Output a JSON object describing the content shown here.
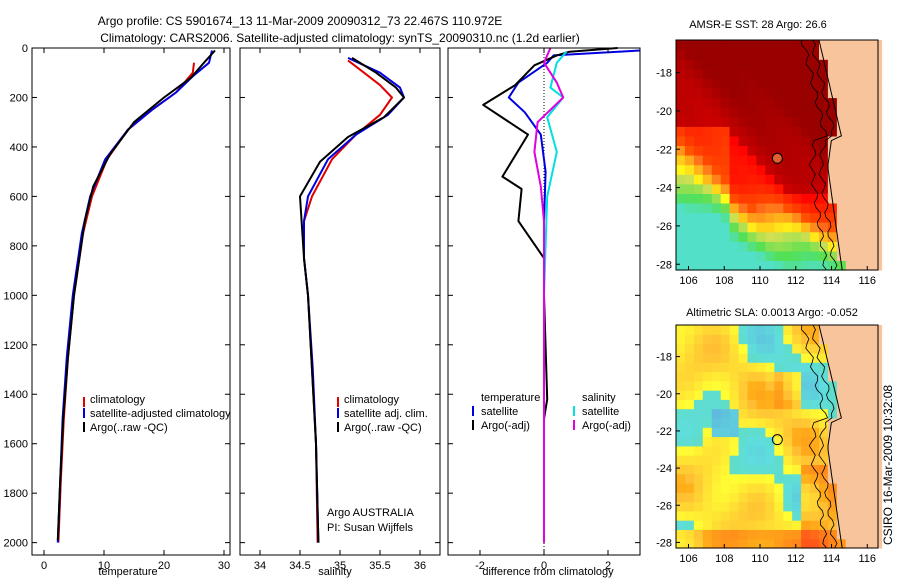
{
  "header": {
    "line1": "Argo profile: CS 5901674_13 11-Mar-2009 20090312_73 22.467S 110.972E",
    "line2": "Climatology: CARS2006. Satellite-adjusted climatology: synTS_20090310.nc (1.2d earlier)"
  },
  "side_stamp": "CSIRO 16-Mar-2009 10:32:08",
  "colors": {
    "clim": "#e00000",
    "sat": "#0000e0",
    "argo": "#000000",
    "cyan": "#00e0e0",
    "magenta": "#e000e0"
  },
  "chart_data": [
    {
      "type": "line",
      "id": "temperature",
      "xlabel": "temperature",
      "ylim": [
        0,
        2050
      ],
      "xlim": [
        -2,
        31
      ],
      "xticks": [
        0,
        10,
        20,
        30
      ],
      "yticks": [
        0,
        200,
        400,
        600,
        800,
        1000,
        1200,
        1400,
        1600,
        1800,
        2000
      ],
      "legend": [
        "climatology",
        "satellite-adjusted climatology",
        "Argo(..raw -QC)"
      ],
      "series": [
        {
          "name": "climatology",
          "color": "clim",
          "points": [
            [
              25,
              60
            ],
            [
              24.8,
              100
            ],
            [
              22,
              180
            ],
            [
              18,
              250
            ],
            [
              14,
              330
            ],
            [
              10.5,
              450
            ],
            [
              8,
              600
            ],
            [
              6.5,
              750
            ],
            [
              5,
              1000
            ],
            [
              4,
              1250
            ],
            [
              3.3,
              1500
            ],
            [
              2.8,
              1750
            ],
            [
              2.4,
              2000
            ]
          ]
        },
        {
          "name": "satellite",
          "color": "sat",
          "points": [
            [
              28,
              10
            ],
            [
              27.5,
              60
            ],
            [
              25,
              110
            ],
            [
              22,
              180
            ],
            [
              18,
              250
            ],
            [
              14,
              330
            ],
            [
              10.2,
              450
            ],
            [
              7.7,
              600
            ],
            [
              6.3,
              750
            ],
            [
              4.8,
              1000
            ],
            [
              3.8,
              1250
            ],
            [
              3.1,
              1500
            ],
            [
              2.7,
              1750
            ],
            [
              2.3,
              2000
            ]
          ]
        },
        {
          "name": "argo",
          "color": "argo",
          "points": [
            [
              28.5,
              10
            ],
            [
              27,
              50
            ],
            [
              24.5,
              120
            ],
            [
              20,
              200
            ],
            [
              15,
              300
            ],
            [
              11,
              430
            ],
            [
              8.2,
              560
            ],
            [
              6.8,
              700
            ],
            [
              5,
              1000
            ],
            [
              4,
              1250
            ],
            [
              3.2,
              1500
            ],
            [
              2.7,
              1750
            ],
            [
              2.3,
              1990
            ]
          ]
        }
      ]
    },
    {
      "type": "line",
      "id": "salinity",
      "xlabel": "salinity",
      "ylim": [
        0,
        2050
      ],
      "xlim": [
        33.75,
        36.25
      ],
      "xticks": [
        34,
        34.5,
        35,
        35.5,
        36
      ],
      "yticks": [
        0,
        200,
        400,
        600,
        800,
        1000,
        1200,
        1400,
        1600,
        1800,
        2000
      ],
      "legend": [
        "climatology",
        "satellite adj. clim.",
        "Argo(..raw -QC)"
      ],
      "note": [
        "Argo AUSTRALIA",
        "PI: Susan Wijffels"
      ],
      "series": [
        {
          "name": "climatology",
          "color": "clim",
          "points": [
            [
              35.1,
              50
            ],
            [
              35.3,
              100
            ],
            [
              35.5,
              150
            ],
            [
              35.65,
              200
            ],
            [
              35.5,
              270
            ],
            [
              35.2,
              350
            ],
            [
              34.9,
              450
            ],
            [
              34.65,
              600
            ],
            [
              34.55,
              700
            ],
            [
              34.55,
              850
            ],
            [
              34.6,
              1000
            ],
            [
              34.65,
              1300
            ],
            [
              34.7,
              1600
            ],
            [
              34.72,
              2000
            ]
          ]
        },
        {
          "name": "satellite",
          "color": "sat",
          "points": [
            [
              35.1,
              40
            ],
            [
              35.5,
              100
            ],
            [
              35.75,
              160
            ],
            [
              35.8,
              200
            ],
            [
              35.6,
              270
            ],
            [
              35.2,
              350
            ],
            [
              34.85,
              450
            ],
            [
              34.6,
              600
            ],
            [
              34.55,
              700
            ],
            [
              34.55,
              850
            ],
            [
              34.6,
              1000
            ],
            [
              34.66,
              1300
            ],
            [
              34.7,
              1600
            ],
            [
              34.73,
              2000
            ]
          ]
        },
        {
          "name": "argo",
          "color": "argo",
          "points": [
            [
              35.15,
              40
            ],
            [
              35.45,
              100
            ],
            [
              35.7,
              160
            ],
            [
              35.8,
              200
            ],
            [
              35.55,
              280
            ],
            [
              35.1,
              360
            ],
            [
              34.75,
              460
            ],
            [
              34.5,
              600
            ],
            [
              34.52,
              700
            ],
            [
              34.55,
              850
            ],
            [
              34.6,
              1000
            ],
            [
              34.65,
              1300
            ],
            [
              34.7,
              1600
            ],
            [
              34.73,
              2000
            ]
          ]
        }
      ]
    },
    {
      "type": "line",
      "id": "difference",
      "xlabel": "difference from climatology",
      "ylim": [
        0,
        2050
      ],
      "xlim": [
        -3,
        3
      ],
      "xticks": [
        -2,
        0,
        2
      ],
      "yticks": [
        0,
        200,
        400,
        600,
        800,
        1000,
        1200,
        1400,
        1600,
        1800,
        2000
      ],
      "legend_left": [
        "temperature",
        "satellite",
        "Argo(-adj)"
      ],
      "legend_right": [
        "salinity",
        "satellite",
        "Argo(-adj)"
      ],
      "series": [
        {
          "name": "temperature satellite",
          "color": "sat",
          "points": [
            [
              3,
              10
            ],
            [
              0.3,
              30
            ],
            [
              0.1,
              60
            ],
            [
              -0.8,
              140
            ],
            [
              -1.1,
              200
            ],
            [
              -0.6,
              260
            ],
            [
              -0.1,
              350
            ],
            [
              0.05,
              500
            ],
            [
              0,
              700
            ],
            [
              0,
              1000
            ],
            [
              0,
              1500
            ],
            [
              0,
              2000
            ]
          ]
        },
        {
          "name": "temperature argo",
          "color": "argo",
          "points": [
            [
              2.3,
              0
            ],
            [
              0.8,
              15
            ],
            [
              0.4,
              30
            ],
            [
              -0.3,
              70
            ],
            [
              -0.9,
              150
            ],
            [
              -1.9,
              230
            ],
            [
              -0.5,
              350
            ],
            [
              -1.3,
              520
            ],
            [
              -0.7,
              570
            ],
            [
              -0.8,
              700
            ],
            [
              0,
              850
            ],
            [
              0,
              1000
            ],
            [
              0.1,
              1420
            ],
            [
              0,
              1500
            ],
            [
              0,
              2000
            ]
          ]
        },
        {
          "name": "salinity satellite",
          "color": "cyan",
          "points": [
            [
              0.7,
              15
            ],
            [
              0.4,
              60
            ],
            [
              0.2,
              160
            ],
            [
              0.6,
              200
            ],
            [
              0.1,
              280
            ],
            [
              0.4,
              420
            ],
            [
              0.1,
              600
            ],
            [
              0.05,
              800
            ],
            [
              0,
              1000
            ],
            [
              0,
              1500
            ],
            [
              0,
              2000
            ]
          ]
        },
        {
          "name": "salinity argo",
          "color": "magenta",
          "points": [
            [
              0.2,
              0
            ],
            [
              0,
              60
            ],
            [
              0.4,
              140
            ],
            [
              0.6,
              200
            ],
            [
              -0.2,
              300
            ],
            [
              -0.3,
              420
            ],
            [
              -0.1,
              560
            ],
            [
              0,
              700
            ],
            [
              0,
              1000
            ],
            [
              0,
              1500
            ],
            [
              0,
              2000
            ]
          ]
        }
      ]
    },
    {
      "type": "heatmap",
      "id": "sst",
      "title": "AMSR-E SST: 28 Argo: 26.6",
      "xlim": [
        105.3,
        116.6
      ],
      "ylim": [
        -28.3,
        -16.3
      ],
      "xticks": [
        106,
        108,
        110,
        112,
        114,
        116
      ],
      "yticks": [
        -18,
        -20,
        -22,
        -24,
        -26,
        -28
      ],
      "marker": [
        110.97,
        -22.47
      ],
      "kind": "sst"
    },
    {
      "type": "heatmap",
      "id": "sla",
      "title": "Altimetric SLA: 0.0013 Argo: -0.052",
      "xlim": [
        105.3,
        116.6
      ],
      "ylim": [
        -28.3,
        -16.3
      ],
      "xticks": [
        106,
        108,
        110,
        112,
        114,
        116
      ],
      "yticks": [
        -18,
        -20,
        -22,
        -24,
        -26,
        -28
      ],
      "marker": [
        110.97,
        -22.47
      ],
      "kind": "sla"
    }
  ]
}
